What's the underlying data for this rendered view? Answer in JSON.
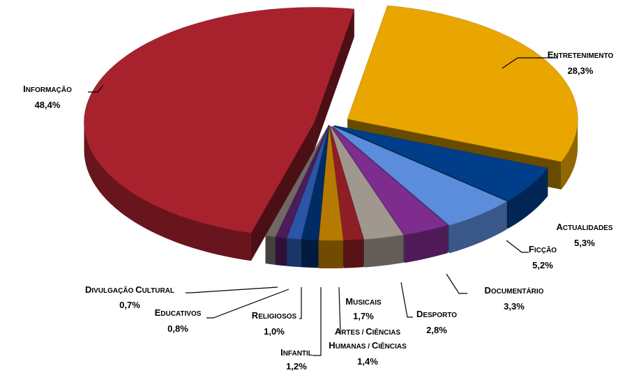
{
  "chart_data": {
    "type": "pie",
    "title": "",
    "style": "3d-exploded",
    "legend": "none",
    "slices": [
      {
        "label": "Entretenimento",
        "value_label": "28,3%",
        "value": 28.3,
        "color": "#E9A600"
      },
      {
        "label": "Actualidades",
        "value_label": "5,3%",
        "value": 5.3,
        "color": "#013E8A"
      },
      {
        "label": "Ficção",
        "value_label": "5,2%",
        "value": 5.2,
        "color": "#5C8CDC"
      },
      {
        "label": "Documentário",
        "value_label": "3,3%",
        "value": 3.3,
        "color": "#7E2C8E"
      },
      {
        "label": "Desporto",
        "value_label": "2,8%",
        "value": 2.8,
        "color": "#A0978E"
      },
      {
        "label": "Artes / Ciências Humanas / Ciências",
        "value_label": "1,4%",
        "value": 1.4,
        "color": "#8E1E26"
      },
      {
        "label": "Musicais",
        "value_label": "1,7%",
        "value": 1.7,
        "color": "#B77A00"
      },
      {
        "label": "Infantil",
        "value_label": "1,2%",
        "value": 1.2,
        "color": "#012C63"
      },
      {
        "label": "Religiosos",
        "value_label": "1,0%",
        "value": 1.0,
        "color": "#2A55A8"
      },
      {
        "label": "Educativos",
        "value_label": "0,8%",
        "value": 0.8,
        "color": "#4B1C5A"
      },
      {
        "label": "Divulgação Cultural",
        "value_label": "0,7%",
        "value": 0.7,
        "color": "#6F6963"
      },
      {
        "label": "Informação",
        "value_label": "48,4%",
        "value": 48.4,
        "color": "#A8222E"
      }
    ]
  }
}
